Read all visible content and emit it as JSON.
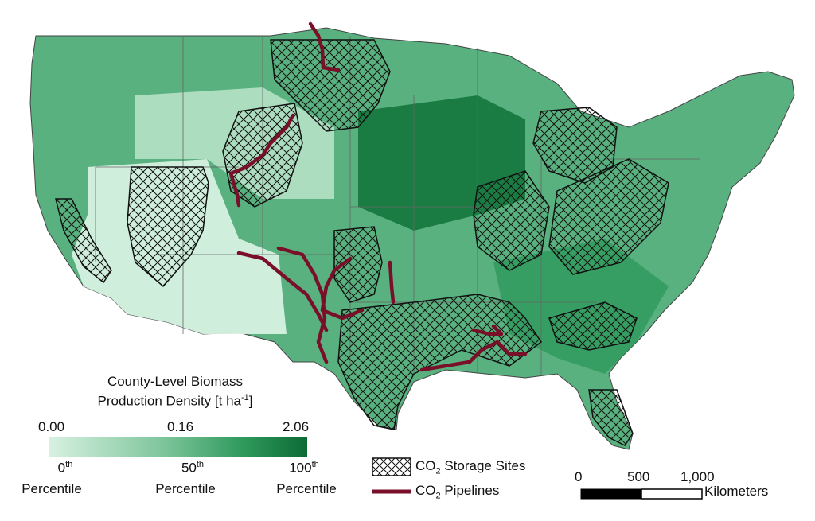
{
  "legend": {
    "title_line1": "County-Level Biomass",
    "title_line2": "Production Density [t ha",
    "title_sup": "-1",
    "title_end": "]",
    "values": [
      "0.00",
      "0.16",
      "2.06"
    ],
    "percentiles": [
      {
        "num": "0",
        "sup": "th",
        "label": "Percentile"
      },
      {
        "num": "50",
        "sup": "th",
        "label": "Percentile"
      },
      {
        "num": "100",
        "sup": "th",
        "label": "Percentile"
      }
    ]
  },
  "symbols": {
    "storage": {
      "pre": "CO",
      "sub": "2",
      "post": " Storage Sites"
    },
    "pipelines": {
      "pre": "CO",
      "sub": "2",
      "post": " Pipelines"
    }
  },
  "scale_bar": {
    "ticks": [
      "0",
      "500",
      "1,000"
    ],
    "unit": "Kilometers"
  },
  "colors": {
    "low": "#d7f1e1",
    "mid": "#5fb583",
    "high": "#0c6b35",
    "pipeline": "#7a0f2a",
    "hatch": "#111111"
  }
}
